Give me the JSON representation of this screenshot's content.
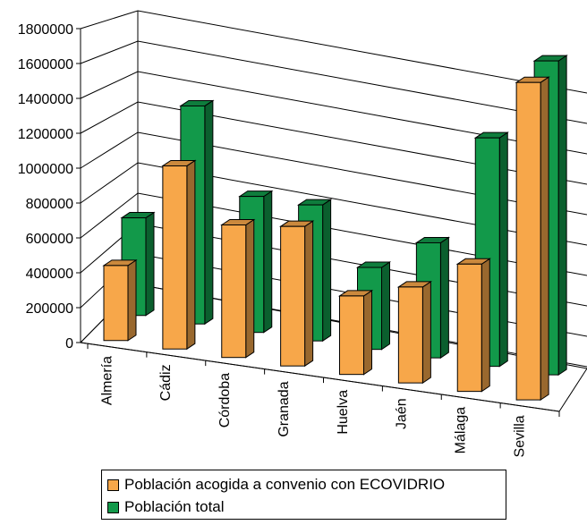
{
  "chart_data": {
    "type": "bar",
    "title": "",
    "xlabel": "",
    "ylabel": "",
    "categories": [
      "Almería",
      "Cádiz",
      "Córdoba",
      "Granada",
      "Huelva",
      "Jaén",
      "Málaga",
      "Sevilla"
    ],
    "series": [
      {
        "name": "Población acogida a convenio con ECOVIDRIO",
        "color": "#F7A74A",
        "values": [
          430000,
          1050000,
          760000,
          800000,
          450000,
          550000,
          730000,
          1820000
        ]
      },
      {
        "name": "Población total",
        "color": "#12994A",
        "values": [
          560000,
          1250000,
          780000,
          780000,
          470000,
          660000,
          1310000,
          1800000
        ]
      }
    ],
    "ylim": [
      0,
      1800000
    ],
    "yticks": [
      "0",
      "200000",
      "400000",
      "600000",
      "800000",
      "1000000",
      "1200000",
      "1400000",
      "1600000",
      "1800000"
    ],
    "grid": true,
    "style": "3d-clustered-column",
    "legend_position": "bottom"
  }
}
